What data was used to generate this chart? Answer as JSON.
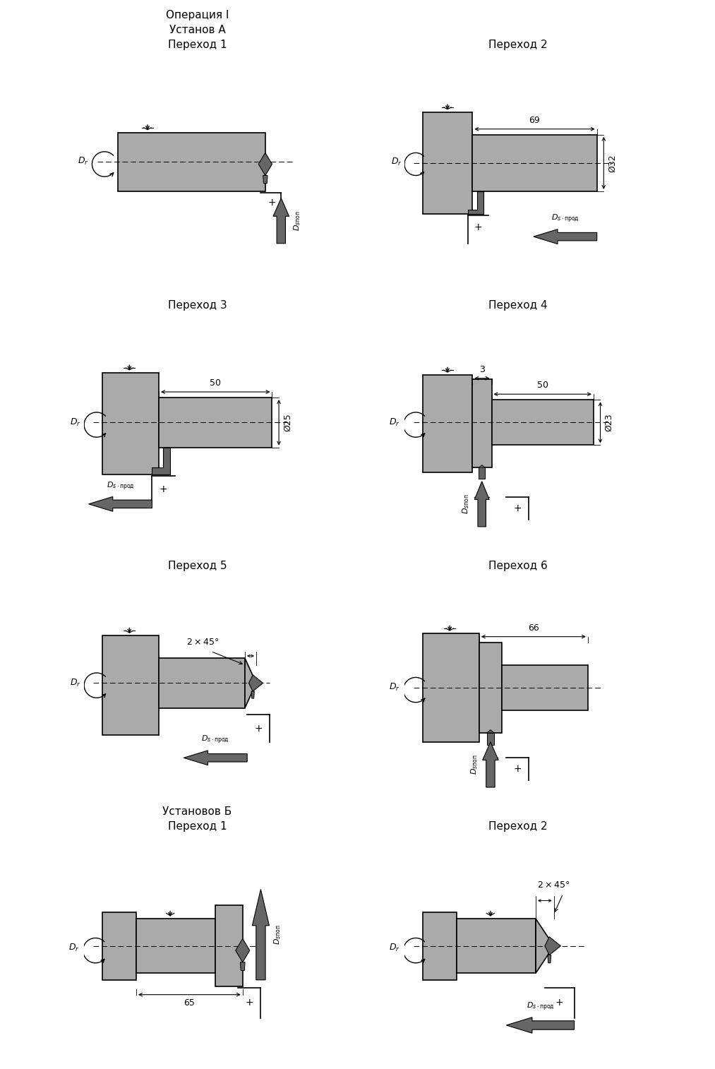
{
  "bg_color": "#ffffff",
  "part_fill": "#aaaaaa",
  "part_edge": "#000000",
  "arrow_fill": "#888888",
  "title_fontsize": 12,
  "panels": [
    {
      "title": "Операция I\nУстанов А\nПереход 1",
      "col": 0,
      "row": 0
    },
    {
      "title": "Переход 2",
      "col": 1,
      "row": 0
    },
    {
      "title": "Переход 3",
      "col": 0,
      "row": 1
    },
    {
      "title": "Переход 4",
      "col": 1,
      "row": 1
    },
    {
      "title": "Переход 5",
      "col": 0,
      "row": 2
    },
    {
      "title": "Переход 6",
      "col": 1,
      "row": 2
    },
    {
      "title": "Установов Б\nПереход 1",
      "col": 0,
      "row": 3
    },
    {
      "title": "Переход 2",
      "col": 1,
      "row": 3
    }
  ]
}
